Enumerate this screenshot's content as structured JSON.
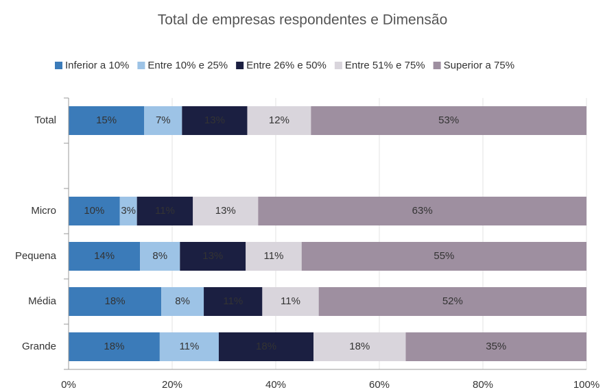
{
  "chart_data": {
    "type": "stacked-barh",
    "title": "Total de empresas respondentes e Dimensão",
    "categories": [
      "Total",
      null,
      "Micro",
      "Pequena",
      "Média",
      "Grande"
    ],
    "series": [
      {
        "name": "Inferior a 10%",
        "color": "#3b7bb9",
        "values": [
          14.6,
          null,
          9.9,
          13.8,
          17.9,
          17.6
        ],
        "value_labels": [
          "15%",
          null,
          "10%",
          "14%",
          "18%",
          "18%"
        ]
      },
      {
        "name": "Entre 10% e 25%",
        "color": "#9dc3e6",
        "values": [
          7.3,
          null,
          3.3,
          7.7,
          8.2,
          11.4
        ],
        "value_labels": [
          "7%",
          null,
          "3%",
          "8%",
          "8%",
          "11%"
        ]
      },
      {
        "name": "Entre 26% e 50%",
        "color": "#1b1f41",
        "values": [
          12.6,
          null,
          10.8,
          12.7,
          11.3,
          18.3
        ],
        "value_labels": [
          "13%",
          null,
          "11%",
          "13%",
          "11%",
          "18%"
        ]
      },
      {
        "name": "Entre 51% e 75%",
        "color": "#d9d5dc",
        "values": [
          12.3,
          null,
          12.6,
          10.8,
          10.9,
          17.8
        ],
        "value_labels": [
          "12%",
          null,
          "13%",
          "11%",
          "11%",
          "18%"
        ]
      },
      {
        "name": "Superior a 75%",
        "color": "#9e8fa0",
        "values": [
          53.2,
          null,
          63.4,
          55.0,
          51.7,
          34.9
        ],
        "value_labels": [
          "53%",
          null,
          "63%",
          "55%",
          "52%",
          "35%"
        ]
      }
    ],
    "xlim": [
      0,
      100
    ],
    "xticks": [
      {
        "value": 0,
        "label": "0%"
      },
      {
        "value": 20,
        "label": "20%"
      },
      {
        "value": 40,
        "label": "40%"
      },
      {
        "value": 60,
        "label": "60%"
      },
      {
        "value": 80,
        "label": "80%"
      },
      {
        "value": 100,
        "label": "100%"
      }
    ],
    "grid": true,
    "legend": "top"
  }
}
